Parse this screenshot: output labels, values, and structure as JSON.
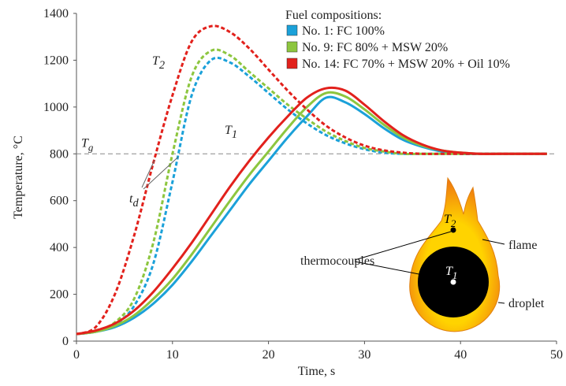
{
  "chart_data": {
    "type": "line",
    "xlabel": "Time, s",
    "ylabel": "Temperature, °C",
    "xlim": [
      0,
      50
    ],
    "xticks": [
      0,
      10,
      20,
      30,
      40,
      50
    ],
    "ylim": [
      0,
      1400
    ],
    "yticks": [
      0,
      200,
      400,
      600,
      800,
      1000,
      1200,
      1400
    ],
    "grid": false,
    "legend_title": "Fuel compositions:",
    "legend_position": "top-right",
    "x": [
      0,
      2,
      4,
      6,
      8,
      10,
      12,
      14,
      16,
      18,
      20,
      22,
      24,
      26,
      28,
      30,
      32,
      34,
      36,
      38,
      40,
      42,
      44,
      46,
      48,
      49
    ],
    "series": [
      {
        "name": "No. 1: FC 100%",
        "color": "#1ba1d9",
        "values": [
          30,
          40,
          60,
          100,
          160,
          240,
          340,
          450,
          560,
          670,
          770,
          870,
          960,
          1040,
          1020,
          970,
          910,
          860,
          830,
          810,
          800,
          800,
          800,
          800,
          800,
          800
        ],
        "values_dashed": [
          30,
          40,
          70,
          150,
          330,
          680,
          1050,
          1200,
          1190,
          1130,
          1060,
          990,
          930,
          880,
          845,
          820,
          805,
          800,
          800,
          800,
          800,
          800,
          800,
          800,
          800,
          800
        ]
      },
      {
        "name": "No. 9: FC 80% + MSW 20%",
        "color": "#8dc63f",
        "values": [
          30,
          40,
          65,
          110,
          180,
          265,
          370,
          485,
          600,
          710,
          810,
          910,
          1000,
          1060,
          1045,
          990,
          925,
          870,
          835,
          815,
          805,
          800,
          800,
          800,
          800,
          800
        ],
        "values_dashed": [
          30,
          45,
          80,
          180,
          420,
          800,
          1130,
          1240,
          1220,
          1150,
          1080,
          1010,
          950,
          895,
          855,
          825,
          810,
          800,
          800,
          800,
          800,
          800,
          800,
          800,
          800,
          800
        ]
      },
      {
        "name": "No. 14: FC 70% + MSW 20% + Oil 10%",
        "color": "#e2211c",
        "values": [
          30,
          45,
          75,
          130,
          210,
          310,
          420,
          540,
          660,
          770,
          870,
          960,
          1040,
          1080,
          1070,
          1010,
          940,
          880,
          840,
          815,
          805,
          800,
          800,
          800,
          800,
          800
        ],
        "values_dashed": [
          30,
          60,
          200,
          450,
          760,
          1050,
          1280,
          1345,
          1320,
          1250,
          1160,
          1070,
          990,
          920,
          870,
          835,
          815,
          805,
          800,
          800,
          800,
          800,
          800,
          800,
          800,
          800
        ]
      }
    ],
    "reference_line": {
      "value": 800,
      "label": {
        "base": "T",
        "sub": "g"
      }
    },
    "annotations": [
      {
        "base": "T",
        "sub": "2"
      },
      {
        "base": "T",
        "sub": "1"
      },
      {
        "base": "t",
        "sub": "d"
      }
    ],
    "diagram": {
      "labels": [
        "thermocouples",
        "flame",
        "droplet"
      ],
      "t1": {
        "base": "T",
        "sub": "1"
      },
      "t2": {
        "base": "T",
        "sub": "2"
      }
    }
  }
}
